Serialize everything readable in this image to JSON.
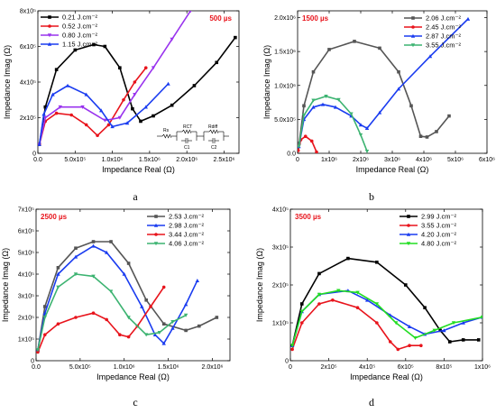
{
  "colors": {
    "black": "#000000",
    "gray": "#555555",
    "red": "#e8141c",
    "purple": "#9933ee",
    "blue": "#1a3cf0",
    "green": "#3cb371",
    "lime": "#22dd22",
    "time_label": "#e8141c"
  },
  "circuit_labels": [
    "Rs",
    "RCT",
    "C1",
    "Rdiff",
    "C2"
  ],
  "chart_data": [
    {
      "type": "line",
      "panel": "a",
      "time_label": "500 µs",
      "xlabel": "Impedance Real (Ω)",
      "ylabel": "Impedance Imag (Ω)",
      "xlim": [
        0,
        2700000
      ],
      "ylim": [
        0,
        800000
      ],
      "xticks": [
        {
          "v": 0,
          "t": "0.0"
        },
        {
          "v": 500000,
          "t": "5.0x10⁵"
        },
        {
          "v": 1000000,
          "t": "1.0x10⁶"
        },
        {
          "v": 1500000,
          "t": "1.5x10⁶"
        },
        {
          "v": 2000000,
          "t": "2.0x10⁶"
        },
        {
          "v": 2500000,
          "t": "2.5x10⁶"
        }
      ],
      "yticks": [
        {
          "v": 0,
          "t": "0"
        },
        {
          "v": 200000,
          "t": "2x10⁵"
        },
        {
          "v": 400000,
          "t": "4x10⁵"
        },
        {
          "v": 600000,
          "t": "6x10⁵"
        },
        {
          "v": 800000,
          "t": "8x10⁵"
        }
      ],
      "legend_position": "top-left",
      "series": [
        {
          "name": "0.21 J.cm⁻²",
          "color": "black",
          "marker": "square",
          "points": [
            [
              20000,
              50000
            ],
            [
              100000,
              260000
            ],
            [
              250000,
              470000
            ],
            [
              500000,
              580000
            ],
            [
              750000,
              610000
            ],
            [
              900000,
              600000
            ],
            [
              1100000,
              480000
            ],
            [
              1270000,
              250000
            ],
            [
              1380000,
              180000
            ],
            [
              1550000,
              210000
            ],
            [
              1800000,
              270000
            ],
            [
              2100000,
              380000
            ],
            [
              2400000,
              510000
            ],
            [
              2650000,
              650000
            ]
          ]
        },
        {
          "name": "0.52 J.cm⁻²",
          "color": "red",
          "marker": "circle",
          "points": [
            [
              20000,
              50000
            ],
            [
              100000,
              180000
            ],
            [
              250000,
              225000
            ],
            [
              450000,
              215000
            ],
            [
              650000,
              160000
            ],
            [
              800000,
              100000
            ],
            [
              950000,
              160000
            ],
            [
              1150000,
              300000
            ],
            [
              1300000,
              400000
            ],
            [
              1450000,
              480000
            ]
          ]
        },
        {
          "name": "0.80 J.cm⁻²",
          "color": "purple",
          "marker": "triangle-down",
          "points": [
            [
              20000,
              50000
            ],
            [
              100000,
              200000
            ],
            [
              300000,
              260000
            ],
            [
              600000,
              260000
            ],
            [
              900000,
              185000
            ],
            [
              1100000,
              200000
            ],
            [
              1300000,
              330000
            ],
            [
              1550000,
              480000
            ],
            [
              1800000,
              640000
            ],
            [
              2050000,
              800000
            ]
          ]
        },
        {
          "name": "1.15 J.cm⁻²",
          "color": "blue",
          "marker": "triangle-up",
          "points": [
            [
              20000,
              50000
            ],
            [
              80000,
              220000
            ],
            [
              200000,
              330000
            ],
            [
              400000,
              380000
            ],
            [
              650000,
              330000
            ],
            [
              850000,
              240000
            ],
            [
              1000000,
              150000
            ],
            [
              1200000,
              170000
            ],
            [
              1450000,
              260000
            ],
            [
              1750000,
              390000
            ]
          ]
        }
      ]
    },
    {
      "type": "line",
      "panel": "b",
      "time_label": "1500 µs",
      "xlabel": "Impedance Real (Ω)",
      "ylabel": "Impedance Imag (Ω)",
      "xlim": [
        0,
        6000000
      ],
      "ylim": [
        0,
        2100000
      ],
      "xticks": [
        {
          "v": 0,
          "t": "0"
        },
        {
          "v": 1000000,
          "t": "1x10⁶"
        },
        {
          "v": 2000000,
          "t": "2x10⁶"
        },
        {
          "v": 3000000,
          "t": "3x10⁶"
        },
        {
          "v": 4000000,
          "t": "4x10⁶"
        },
        {
          "v": 5000000,
          "t": "5x10⁶"
        },
        {
          "v": 6000000,
          "t": "6x10⁶"
        }
      ],
      "yticks": [
        {
          "v": 0,
          "t": "0.0"
        },
        {
          "v": 500000,
          "t": "5.0x10⁵"
        },
        {
          "v": 1000000,
          "t": "1.0x10⁶"
        },
        {
          "v": 1500000,
          "t": "1.5x10⁶"
        },
        {
          "v": 2000000,
          "t": "2.0x10⁶"
        }
      ],
      "legend_position": "top-right",
      "series": [
        {
          "name": "2.06 J.cm⁻²",
          "color": "gray",
          "marker": "square",
          "points": [
            [
              50000,
              150000
            ],
            [
              200000,
              700000
            ],
            [
              500000,
              1200000
            ],
            [
              1000000,
              1530000
            ],
            [
              1800000,
              1650000
            ],
            [
              2600000,
              1550000
            ],
            [
              3200000,
              1200000
            ],
            [
              3600000,
              700000
            ],
            [
              3900000,
              250000
            ],
            [
              4100000,
              240000
            ],
            [
              4400000,
              320000
            ],
            [
              4800000,
              550000
            ]
          ]
        },
        {
          "name": "2.45 J.cm⁻²",
          "color": "red",
          "marker": "circle",
          "points": [
            [
              20000,
              40000
            ],
            [
              100000,
              200000
            ],
            [
              250000,
              250000
            ],
            [
              450000,
              180000
            ],
            [
              600000,
              20000
            ]
          ]
        },
        {
          "name": "2.87 J.cm⁻²",
          "color": "blue",
          "marker": "triangle-up",
          "points": [
            [
              40000,
              100000
            ],
            [
              200000,
              500000
            ],
            [
              500000,
              680000
            ],
            [
              800000,
              720000
            ],
            [
              1200000,
              680000
            ],
            [
              1700000,
              550000
            ],
            [
              2000000,
              420000
            ],
            [
              2200000,
              370000
            ],
            [
              2600000,
              600000
            ],
            [
              3200000,
              950000
            ],
            [
              4200000,
              1430000
            ],
            [
              5400000,
              1980000
            ]
          ]
        },
        {
          "name": "3.55 J.cm⁻²",
          "color": "green",
          "marker": "triangle-down",
          "points": [
            [
              40000,
              100000
            ],
            [
              200000,
              560000
            ],
            [
              500000,
              780000
            ],
            [
              900000,
              840000
            ],
            [
              1300000,
              790000
            ],
            [
              1700000,
              580000
            ],
            [
              2000000,
              270000
            ],
            [
              2200000,
              30000
            ]
          ]
        }
      ]
    },
    {
      "type": "line",
      "panel": "c",
      "time_label": "2500 µs",
      "xlabel": "Impedance Real (Ω)",
      "ylabel": "Impedance Imag (Ω)",
      "xlim": [
        0,
        2200000
      ],
      "ylim": [
        0,
        700000
      ],
      "xticks": [
        {
          "v": 0,
          "t": "0.0"
        },
        {
          "v": 500000,
          "t": "5.0x10⁵"
        },
        {
          "v": 1000000,
          "t": "1.0x10⁶"
        },
        {
          "v": 1500000,
          "t": "1.5x10⁶"
        },
        {
          "v": 2000000,
          "t": "2.0x10⁶"
        }
      ],
      "yticks": [
        {
          "v": 0,
          "t": "0"
        },
        {
          "v": 100000,
          "t": "1x10⁵"
        },
        {
          "v": 200000,
          "t": "2x10⁵"
        },
        {
          "v": 300000,
          "t": "3x10⁵"
        },
        {
          "v": 400000,
          "t": "4x10⁵"
        },
        {
          "v": 500000,
          "t": "5x10⁵"
        },
        {
          "v": 600000,
          "t": "6x10⁵"
        },
        {
          "v": 700000,
          "t": "7x10⁵"
        }
      ],
      "legend_position": "top-right",
      "series": [
        {
          "name": "2.53 J.cm⁻²",
          "color": "gray",
          "marker": "square",
          "points": [
            [
              20000,
              50000
            ],
            [
              100000,
              250000
            ],
            [
              250000,
              430000
            ],
            [
              450000,
              520000
            ],
            [
              650000,
              550000
            ],
            [
              850000,
              550000
            ],
            [
              1050000,
              450000
            ],
            [
              1250000,
              280000
            ],
            [
              1450000,
              170000
            ],
            [
              1700000,
              140000
            ],
            [
              1850000,
              160000
            ],
            [
              2050000,
              200000
            ]
          ]
        },
        {
          "name": "2.98 J.cm⁻²",
          "color": "blue",
          "marker": "triangle-up",
          "points": [
            [
              20000,
              50000
            ],
            [
              100000,
              220000
            ],
            [
              250000,
              400000
            ],
            [
              450000,
              480000
            ],
            [
              650000,
              530000
            ],
            [
              800000,
              500000
            ],
            [
              1000000,
              400000
            ],
            [
              1200000,
              250000
            ],
            [
              1350000,
              120000
            ],
            [
              1450000,
              80000
            ],
            [
              1550000,
              150000
            ],
            [
              1700000,
              260000
            ],
            [
              1830000,
              370000
            ]
          ]
        },
        {
          "name": "3.44 J.cm⁻²",
          "color": "red",
          "marker": "circle",
          "points": [
            [
              20000,
              40000
            ],
            [
              100000,
              120000
            ],
            [
              250000,
              170000
            ],
            [
              450000,
              200000
            ],
            [
              650000,
              220000
            ],
            [
              800000,
              190000
            ],
            [
              950000,
              120000
            ],
            [
              1050000,
              110000
            ],
            [
              1150000,
              160000
            ],
            [
              1300000,
              250000
            ],
            [
              1450000,
              340000
            ]
          ]
        },
        {
          "name": "4.06 J.cm⁻²",
          "color": "green",
          "marker": "triangle-down",
          "points": [
            [
              20000,
              50000
            ],
            [
              100000,
              200000
            ],
            [
              250000,
              340000
            ],
            [
              450000,
              400000
            ],
            [
              650000,
              390000
            ],
            [
              850000,
              320000
            ],
            [
              1050000,
              200000
            ],
            [
              1250000,
              120000
            ],
            [
              1400000,
              130000
            ],
            [
              1550000,
              180000
            ],
            [
              1700000,
              210000
            ]
          ]
        }
      ]
    },
    {
      "type": "line",
      "panel": "d",
      "time_label": "3500 µs",
      "xlabel": "Impedance Real (Ω)",
      "ylabel": "Impedance Imag (Ω)",
      "xlim": [
        0,
        1000000
      ],
      "ylim": [
        0,
        400000
      ],
      "xticks": [
        {
          "v": 0,
          "t": "0"
        },
        {
          "v": 200000,
          "t": "2x10⁵"
        },
        {
          "v": 400000,
          "t": "4x10⁵"
        },
        {
          "v": 600000,
          "t": "6x10⁵"
        },
        {
          "v": 800000,
          "t": "8x10⁵"
        },
        {
          "v": 1000000,
          "t": "1x10⁶"
        }
      ],
      "yticks": [
        {
          "v": 0,
          "t": "0"
        },
        {
          "v": 100000,
          "t": "1x10⁵"
        },
        {
          "v": 200000,
          "t": "2x10⁵"
        },
        {
          "v": 300000,
          "t": "3x10⁵"
        },
        {
          "v": 400000,
          "t": "4x10⁵"
        }
      ],
      "legend_position": "top-right",
      "series": [
        {
          "name": "2.99 J.cm⁻²",
          "color": "black",
          "marker": "square",
          "points": [
            [
              10000,
              40000
            ],
            [
              60000,
              150000
            ],
            [
              150000,
              230000
            ],
            [
              300000,
              270000
            ],
            [
              450000,
              260000
            ],
            [
              600000,
              200000
            ],
            [
              700000,
              140000
            ],
            [
              780000,
              80000
            ],
            [
              830000,
              50000
            ],
            [
              900000,
              55000
            ],
            [
              980000,
              55000
            ]
          ]
        },
        {
          "name": "3.55 J.cm⁻²",
          "color": "red",
          "marker": "circle",
          "points": [
            [
              10000,
              30000
            ],
            [
              60000,
              100000
            ],
            [
              150000,
              150000
            ],
            [
              220000,
              160000
            ],
            [
              350000,
              140000
            ],
            [
              450000,
              100000
            ],
            [
              520000,
              50000
            ],
            [
              560000,
              30000
            ],
            [
              620000,
              40000
            ],
            [
              680000,
              40000
            ]
          ]
        },
        {
          "name": "4.20 J.cm⁻²",
          "color": "blue",
          "marker": "triangle-up",
          "points": [
            [
              10000,
              40000
            ],
            [
              60000,
              130000
            ],
            [
              150000,
              175000
            ],
            [
              300000,
              185000
            ],
            [
              400000,
              160000
            ],
            [
              520000,
              120000
            ],
            [
              620000,
              90000
            ],
            [
              700000,
              70000
            ],
            [
              800000,
              80000
            ],
            [
              900000,
              100000
            ],
            [
              1000000,
              115000
            ]
          ]
        },
        {
          "name": "4.80 J.cm⁻²",
          "color": "lime",
          "marker": "triangle-down",
          "points": [
            [
              10000,
              40000
            ],
            [
              60000,
              130000
            ],
            [
              150000,
              175000
            ],
            [
              250000,
              185000
            ],
            [
              350000,
              180000
            ],
            [
              450000,
              150000
            ],
            [
              550000,
              100000
            ],
            [
              650000,
              60000
            ],
            [
              750000,
              80000
            ],
            [
              850000,
              100000
            ],
            [
              1000000,
              115000
            ]
          ]
        }
      ]
    }
  ]
}
